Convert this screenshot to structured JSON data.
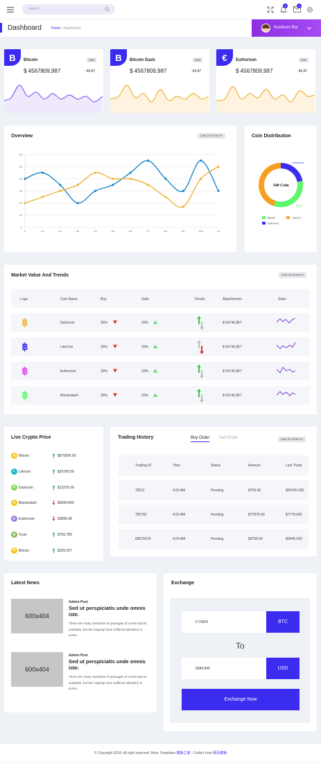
{
  "header": {
    "search_placeholder": "Search...",
    "notif_badge_1": "3",
    "notif_badge_2": "3",
    "user_name": "Kumkum Rai"
  },
  "page": {
    "title": "Dashboard",
    "breadcrumb_home": "Home",
    "breadcrumb_sep": "/",
    "breadcrumb_current": "Dashboard"
  },
  "tickers": [
    {
      "name": "Bitcoin",
      "badge": "24H",
      "price": "$ 4567809,987",
      "change": "-45.87",
      "glyph": "B",
      "color": "#7f63f4",
      "fill": "#efe9fb"
    },
    {
      "name": "Bitcoin Dash",
      "badge": "24H",
      "price": "$ 4567809,987",
      "change": "-45.87",
      "glyph": "B",
      "color": "#efb338",
      "fill": "#fdf3df"
    },
    {
      "name": "Euthorium",
      "badge": "24H",
      "price": "$ 4567809,987",
      "change": "-45.87",
      "glyph": "€",
      "color": "#efb338",
      "fill": "#fdf3df"
    }
  ],
  "overview": {
    "title": "Overview",
    "filter": "Last 24 Hours",
    "chart_data": {
      "type": "line",
      "x": [
        0,
        1,
        2,
        3,
        4,
        5,
        6,
        7,
        8,
        9,
        10,
        11
      ],
      "xticks": [
        "0",
        "10",
        "20",
        "30",
        "40",
        "50",
        "60",
        "70",
        "80",
        "90",
        "100",
        "11"
      ],
      "yticks": [
        "0",
        "10",
        "20",
        "30",
        "40",
        "50",
        "60"
      ],
      "ylim": [
        0,
        60
      ],
      "grid": true,
      "series": [
        {
          "values": [
            40,
            45,
            35,
            20,
            30,
            35,
            45,
            55,
            40,
            30,
            55,
            30
          ],
          "color": "#1a87c9"
        },
        {
          "values": [
            20,
            25,
            30,
            35,
            45,
            40,
            40,
            35,
            25,
            17,
            40,
            50
          ],
          "color": "#efb338"
        }
      ]
    }
  },
  "distribution": {
    "title": "Coin Distribution",
    "center": "340 Coin",
    "chart_data": {
      "type": "pie",
      "series": [
        {
          "name": "Euthorium",
          "value": 22,
          "color": "#3b2cf0"
        },
        {
          "name": "Bitcoin",
          "value": 33,
          "color": "#5cf76a"
        },
        {
          "name": "LiteCoin",
          "value": 45,
          "color": "#f79f22"
        }
      ],
      "legend": [
        "Bitcoin",
        "LiteCoin",
        "Euthorium"
      ]
    }
  },
  "market": {
    "title": "Market Value And Trends",
    "filter": "Last 24 Hours",
    "headers": [
      "Logo",
      "Coin Name",
      "Buy",
      "Sells",
      "Trends",
      "Attachments",
      "Stats"
    ],
    "rows": [
      {
        "name": "Dashcoin",
        "buy": "30%",
        "sells": "20%",
        "attach": "$ 56746,857",
        "color": "#efb338",
        "trend_active": "up"
      },
      {
        "name": "LiteCoin",
        "buy": "30%",
        "sells": "20%",
        "attach": "$ 56746,857",
        "color": "#3b2cf0",
        "trend_active": "down"
      },
      {
        "name": "Euthorium",
        "buy": "30%",
        "sells": "20%",
        "attach": "$ 56746,857",
        "color": "#e23df0",
        "trend_active": "up"
      },
      {
        "name": "Bitcoindash",
        "buy": "30%",
        "sells": "20%",
        "attach": "$ 56746,857",
        "color": "#5cf76a",
        "trend_active": "up"
      }
    ]
  },
  "live": {
    "title": "Live Crypto Price",
    "items": [
      {
        "letter": "B",
        "name": "Bitcoin",
        "dir": "up",
        "price": "$876909.00",
        "color": "#f5c518"
      },
      {
        "letter": "L",
        "name": "Litecoin",
        "dir": "up",
        "price": "$29780.00",
        "color": "#1fb5c9"
      },
      {
        "letter": "D",
        "name": "Dashcoin",
        "dir": "up",
        "price": "$13276.00",
        "color": "#7ed957"
      },
      {
        "letter": "B",
        "name": "Bitcoindash",
        "dir": "down",
        "price": "$5684.890",
        "color": "#f5c518"
      },
      {
        "letter": "E",
        "name": "Euthorium",
        "dir": "down",
        "price": "$3890.98",
        "color": "#9a7fe0"
      },
      {
        "letter": "B",
        "name": "Tcoin",
        "dir": "up",
        "price": "$750.789",
        "color": "#8cb85a"
      },
      {
        "letter": "B",
        "name": "Bitcoin",
        "dir": "up",
        "price": "$325.037",
        "color": "#f5c518"
      }
    ]
  },
  "history": {
    "title": "Trading History",
    "tab_buy": "Buy Order",
    "tab_sell": "Sell Order",
    "filter": "Last 24 Hours",
    "headers": [
      "Trading ID",
      "Time",
      "Status",
      "Amount",
      "Last Trade"
    ],
    "rows": [
      [
        "78211",
        "4.00 AM",
        "Pending",
        "$758.90",
        "$05245.090"
      ],
      [
        "782782",
        "4.00 AM",
        "Pending",
        "$77878.90",
        "$7778.090"
      ],
      [
        "89675978",
        "4.00 AM",
        "Pending",
        "$0768.90",
        "$0945.090"
      ]
    ]
  },
  "news": {
    "title": "Latest News",
    "items": [
      {
        "img": "600x404",
        "author": "Admin Post",
        "headline": "Sed ut perspiciatis unde omnis iste.",
        "body": "There are many variations of passages of Lorem Ipsum available, but the majority have suffered alteration in some..."
      },
      {
        "img": "600x404",
        "author": "Admin Post",
        "headline": "Sed ut perspiciatis unde omnis iste.",
        "body": "There are many variations of passages of Lorem Ipsum available, but the majority have suffered alteration in some..."
      }
    ]
  },
  "exchange": {
    "title": "Exchange",
    "from_value": "0.76834",
    "from_currency": "BTC",
    "to_label": "To",
    "to_value": "5689.846",
    "to_currency": "USD",
    "button": "Exchange Now"
  },
  "footer": {
    "text": "© Copyright 2018. All right reserved. More Templates",
    "link1": "模板之家",
    "sep": " - Collect from",
    "link2": "网页模板"
  }
}
